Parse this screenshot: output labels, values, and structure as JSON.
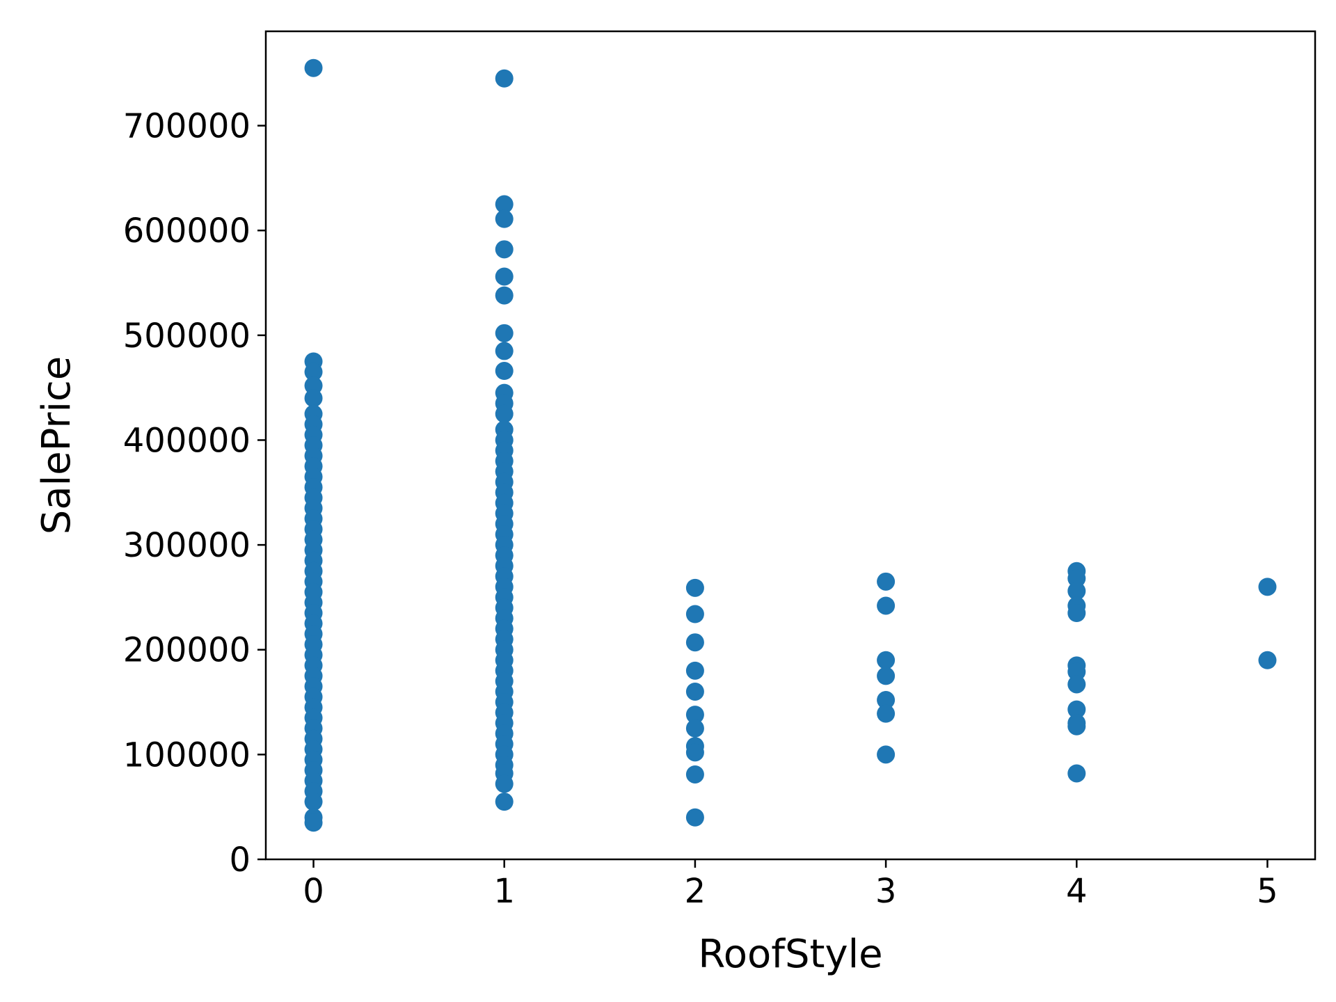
{
  "chart_data": {
    "type": "scatter",
    "title": "",
    "xlabel": "RoofStyle",
    "ylabel": "SalePrice",
    "xlim": [
      -0.25,
      5.25
    ],
    "ylim": [
      0,
      790000
    ],
    "xticks": [
      0,
      1,
      2,
      3,
      4,
      5
    ],
    "yticks": [
      0,
      100000,
      200000,
      300000,
      400000,
      500000,
      600000,
      700000
    ],
    "grid": false,
    "legend": "none",
    "marker_color": "#1f77b4",
    "series": [
      {
        "name": "",
        "points": [
          {
            "x": 0,
            "y": 755000
          },
          {
            "x": 0,
            "y": 475000
          },
          {
            "x": 0,
            "y": 465000
          },
          {
            "x": 0,
            "y": 452000
          },
          {
            "x": 0,
            "y": 440000
          },
          {
            "x": 0,
            "y": 425000
          },
          {
            "x": 0,
            "y": 415000
          },
          {
            "x": 0,
            "y": 405000
          },
          {
            "x": 0,
            "y": 395000
          },
          {
            "x": 0,
            "y": 385000
          },
          {
            "x": 0,
            "y": 375000
          },
          {
            "x": 0,
            "y": 365000
          },
          {
            "x": 0,
            "y": 355000
          },
          {
            "x": 0,
            "y": 345000
          },
          {
            "x": 0,
            "y": 335000
          },
          {
            "x": 0,
            "y": 325000
          },
          {
            "x": 0,
            "y": 315000
          },
          {
            "x": 0,
            "y": 305000
          },
          {
            "x": 0,
            "y": 295000
          },
          {
            "x": 0,
            "y": 285000
          },
          {
            "x": 0,
            "y": 275000
          },
          {
            "x": 0,
            "y": 265000
          },
          {
            "x": 0,
            "y": 255000
          },
          {
            "x": 0,
            "y": 245000
          },
          {
            "x": 0,
            "y": 235000
          },
          {
            "x": 0,
            "y": 225000
          },
          {
            "x": 0,
            "y": 215000
          },
          {
            "x": 0,
            "y": 205000
          },
          {
            "x": 0,
            "y": 195000
          },
          {
            "x": 0,
            "y": 185000
          },
          {
            "x": 0,
            "y": 175000
          },
          {
            "x": 0,
            "y": 165000
          },
          {
            "x": 0,
            "y": 155000
          },
          {
            "x": 0,
            "y": 145000
          },
          {
            "x": 0,
            "y": 135000
          },
          {
            "x": 0,
            "y": 125000
          },
          {
            "x": 0,
            "y": 115000
          },
          {
            "x": 0,
            "y": 105000
          },
          {
            "x": 0,
            "y": 95000
          },
          {
            "x": 0,
            "y": 85000
          },
          {
            "x": 0,
            "y": 75000
          },
          {
            "x": 0,
            "y": 65000
          },
          {
            "x": 0,
            "y": 55000
          },
          {
            "x": 0,
            "y": 40000
          },
          {
            "x": 0,
            "y": 35000
          },
          {
            "x": 1,
            "y": 745000
          },
          {
            "x": 1,
            "y": 625000
          },
          {
            "x": 1,
            "y": 611000
          },
          {
            "x": 1,
            "y": 582000
          },
          {
            "x": 1,
            "y": 556000
          },
          {
            "x": 1,
            "y": 538000
          },
          {
            "x": 1,
            "y": 502000
          },
          {
            "x": 1,
            "y": 485000
          },
          {
            "x": 1,
            "y": 466000
          },
          {
            "x": 1,
            "y": 445000
          },
          {
            "x": 1,
            "y": 435000
          },
          {
            "x": 1,
            "y": 425000
          },
          {
            "x": 1,
            "y": 410000
          },
          {
            "x": 1,
            "y": 400000
          },
          {
            "x": 1,
            "y": 390000
          },
          {
            "x": 1,
            "y": 380000
          },
          {
            "x": 1,
            "y": 370000
          },
          {
            "x": 1,
            "y": 360000
          },
          {
            "x": 1,
            "y": 350000
          },
          {
            "x": 1,
            "y": 340000
          },
          {
            "x": 1,
            "y": 330000
          },
          {
            "x": 1,
            "y": 320000
          },
          {
            "x": 1,
            "y": 310000
          },
          {
            "x": 1,
            "y": 300000
          },
          {
            "x": 1,
            "y": 290000
          },
          {
            "x": 1,
            "y": 280000
          },
          {
            "x": 1,
            "y": 270000
          },
          {
            "x": 1,
            "y": 260000
          },
          {
            "x": 1,
            "y": 250000
          },
          {
            "x": 1,
            "y": 240000
          },
          {
            "x": 1,
            "y": 230000
          },
          {
            "x": 1,
            "y": 220000
          },
          {
            "x": 1,
            "y": 210000
          },
          {
            "x": 1,
            "y": 200000
          },
          {
            "x": 1,
            "y": 190000
          },
          {
            "x": 1,
            "y": 180000
          },
          {
            "x": 1,
            "y": 170000
          },
          {
            "x": 1,
            "y": 160000
          },
          {
            "x": 1,
            "y": 150000
          },
          {
            "x": 1,
            "y": 140000
          },
          {
            "x": 1,
            "y": 130000
          },
          {
            "x": 1,
            "y": 120000
          },
          {
            "x": 1,
            "y": 110000
          },
          {
            "x": 1,
            "y": 100000
          },
          {
            "x": 1,
            "y": 90000
          },
          {
            "x": 1,
            "y": 82000
          },
          {
            "x": 1,
            "y": 72000
          },
          {
            "x": 1,
            "y": 55000
          },
          {
            "x": 2,
            "y": 259000
          },
          {
            "x": 2,
            "y": 234000
          },
          {
            "x": 2,
            "y": 207000
          },
          {
            "x": 2,
            "y": 180000
          },
          {
            "x": 2,
            "y": 160000
          },
          {
            "x": 2,
            "y": 138000
          },
          {
            "x": 2,
            "y": 125000
          },
          {
            "x": 2,
            "y": 108000
          },
          {
            "x": 2,
            "y": 102000
          },
          {
            "x": 2,
            "y": 81000
          },
          {
            "x": 2,
            "y": 40000
          },
          {
            "x": 3,
            "y": 265000
          },
          {
            "x": 3,
            "y": 242000
          },
          {
            "x": 3,
            "y": 190000
          },
          {
            "x": 3,
            "y": 175000
          },
          {
            "x": 3,
            "y": 152000
          },
          {
            "x": 3,
            "y": 139000
          },
          {
            "x": 3,
            "y": 100000
          },
          {
            "x": 4,
            "y": 275000
          },
          {
            "x": 4,
            "y": 268000
          },
          {
            "x": 4,
            "y": 256000
          },
          {
            "x": 4,
            "y": 242000
          },
          {
            "x": 4,
            "y": 235000
          },
          {
            "x": 4,
            "y": 185000
          },
          {
            "x": 4,
            "y": 179000
          },
          {
            "x": 4,
            "y": 167000
          },
          {
            "x": 4,
            "y": 143000
          },
          {
            "x": 4,
            "y": 130000
          },
          {
            "x": 4,
            "y": 127000
          },
          {
            "x": 4,
            "y": 82000
          },
          {
            "x": 5,
            "y": 260000
          },
          {
            "x": 5,
            "y": 190000
          }
        ]
      }
    ]
  }
}
